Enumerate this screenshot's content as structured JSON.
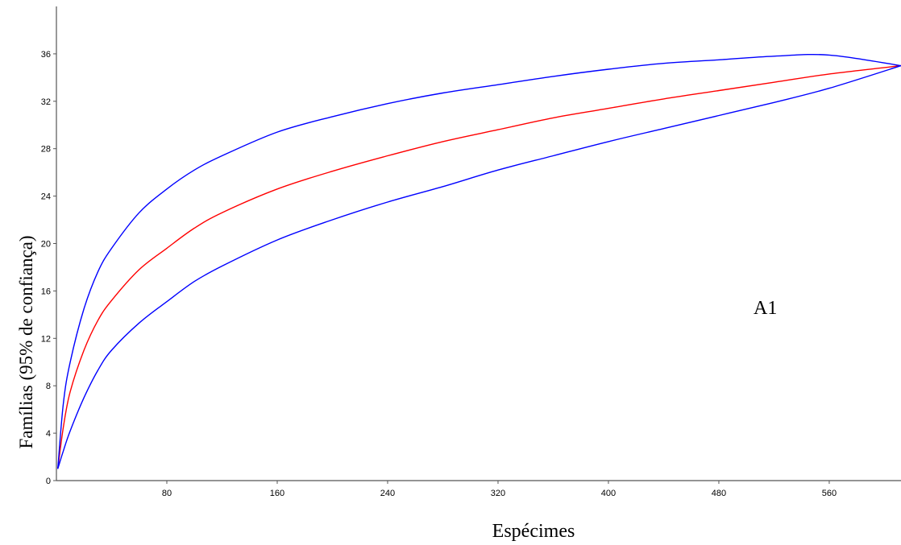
{
  "chart_data": {
    "type": "line",
    "xlabel": "Espécimes",
    "ylabel": "Famílias (95% de confiança)",
    "annotation": "A1",
    "xlim": [
      0,
      612
    ],
    "ylim": [
      0,
      40
    ],
    "xticks": [
      80,
      160,
      240,
      320,
      400,
      480,
      560
    ],
    "yticks": [
      0,
      4,
      8,
      12,
      16,
      20,
      24,
      28,
      32,
      36
    ],
    "grid": false,
    "series": [
      {
        "color": "#ff0000",
        "x": [
          1,
          5,
          10,
          20,
          30,
          40,
          60,
          80,
          100,
          120,
          160,
          200,
          240,
          280,
          320,
          360,
          400,
          440,
          480,
          520,
          560,
          612
        ],
        "y": [
          1,
          4.5,
          7.5,
          11,
          13.5,
          15.2,
          17.8,
          19.6,
          21.3,
          22.6,
          24.6,
          26.1,
          27.4,
          28.6,
          29.6,
          30.6,
          31.4,
          32.2,
          32.9,
          33.6,
          34.3,
          35
        ]
      },
      {
        "color": "#0000ff",
        "x": [
          1,
          5,
          10,
          20,
          30,
          40,
          60,
          80,
          100,
          120,
          160,
          200,
          240,
          280,
          320,
          360,
          400,
          440,
          480,
          520,
          560,
          612
        ],
        "y": [
          1,
          6.5,
          10,
          14.5,
          17.6,
          19.6,
          22.6,
          24.6,
          26.2,
          27.4,
          29.4,
          30.7,
          31.8,
          32.7,
          33.4,
          34.1,
          34.7,
          35.2,
          35.5,
          35.8,
          35.9,
          35
        ]
      },
      {
        "color": "#0000ff",
        "x": [
          1,
          5,
          10,
          20,
          30,
          40,
          60,
          80,
          100,
          120,
          160,
          200,
          240,
          280,
          320,
          360,
          400,
          440,
          480,
          520,
          560,
          612
        ],
        "y": [
          1,
          2.5,
          4.2,
          7,
          9.3,
          11,
          13.3,
          15.1,
          16.8,
          18.1,
          20.3,
          22,
          23.5,
          24.8,
          26.2,
          27.4,
          28.6,
          29.7,
          30.8,
          31.9,
          33.1,
          35
        ]
      }
    ]
  }
}
